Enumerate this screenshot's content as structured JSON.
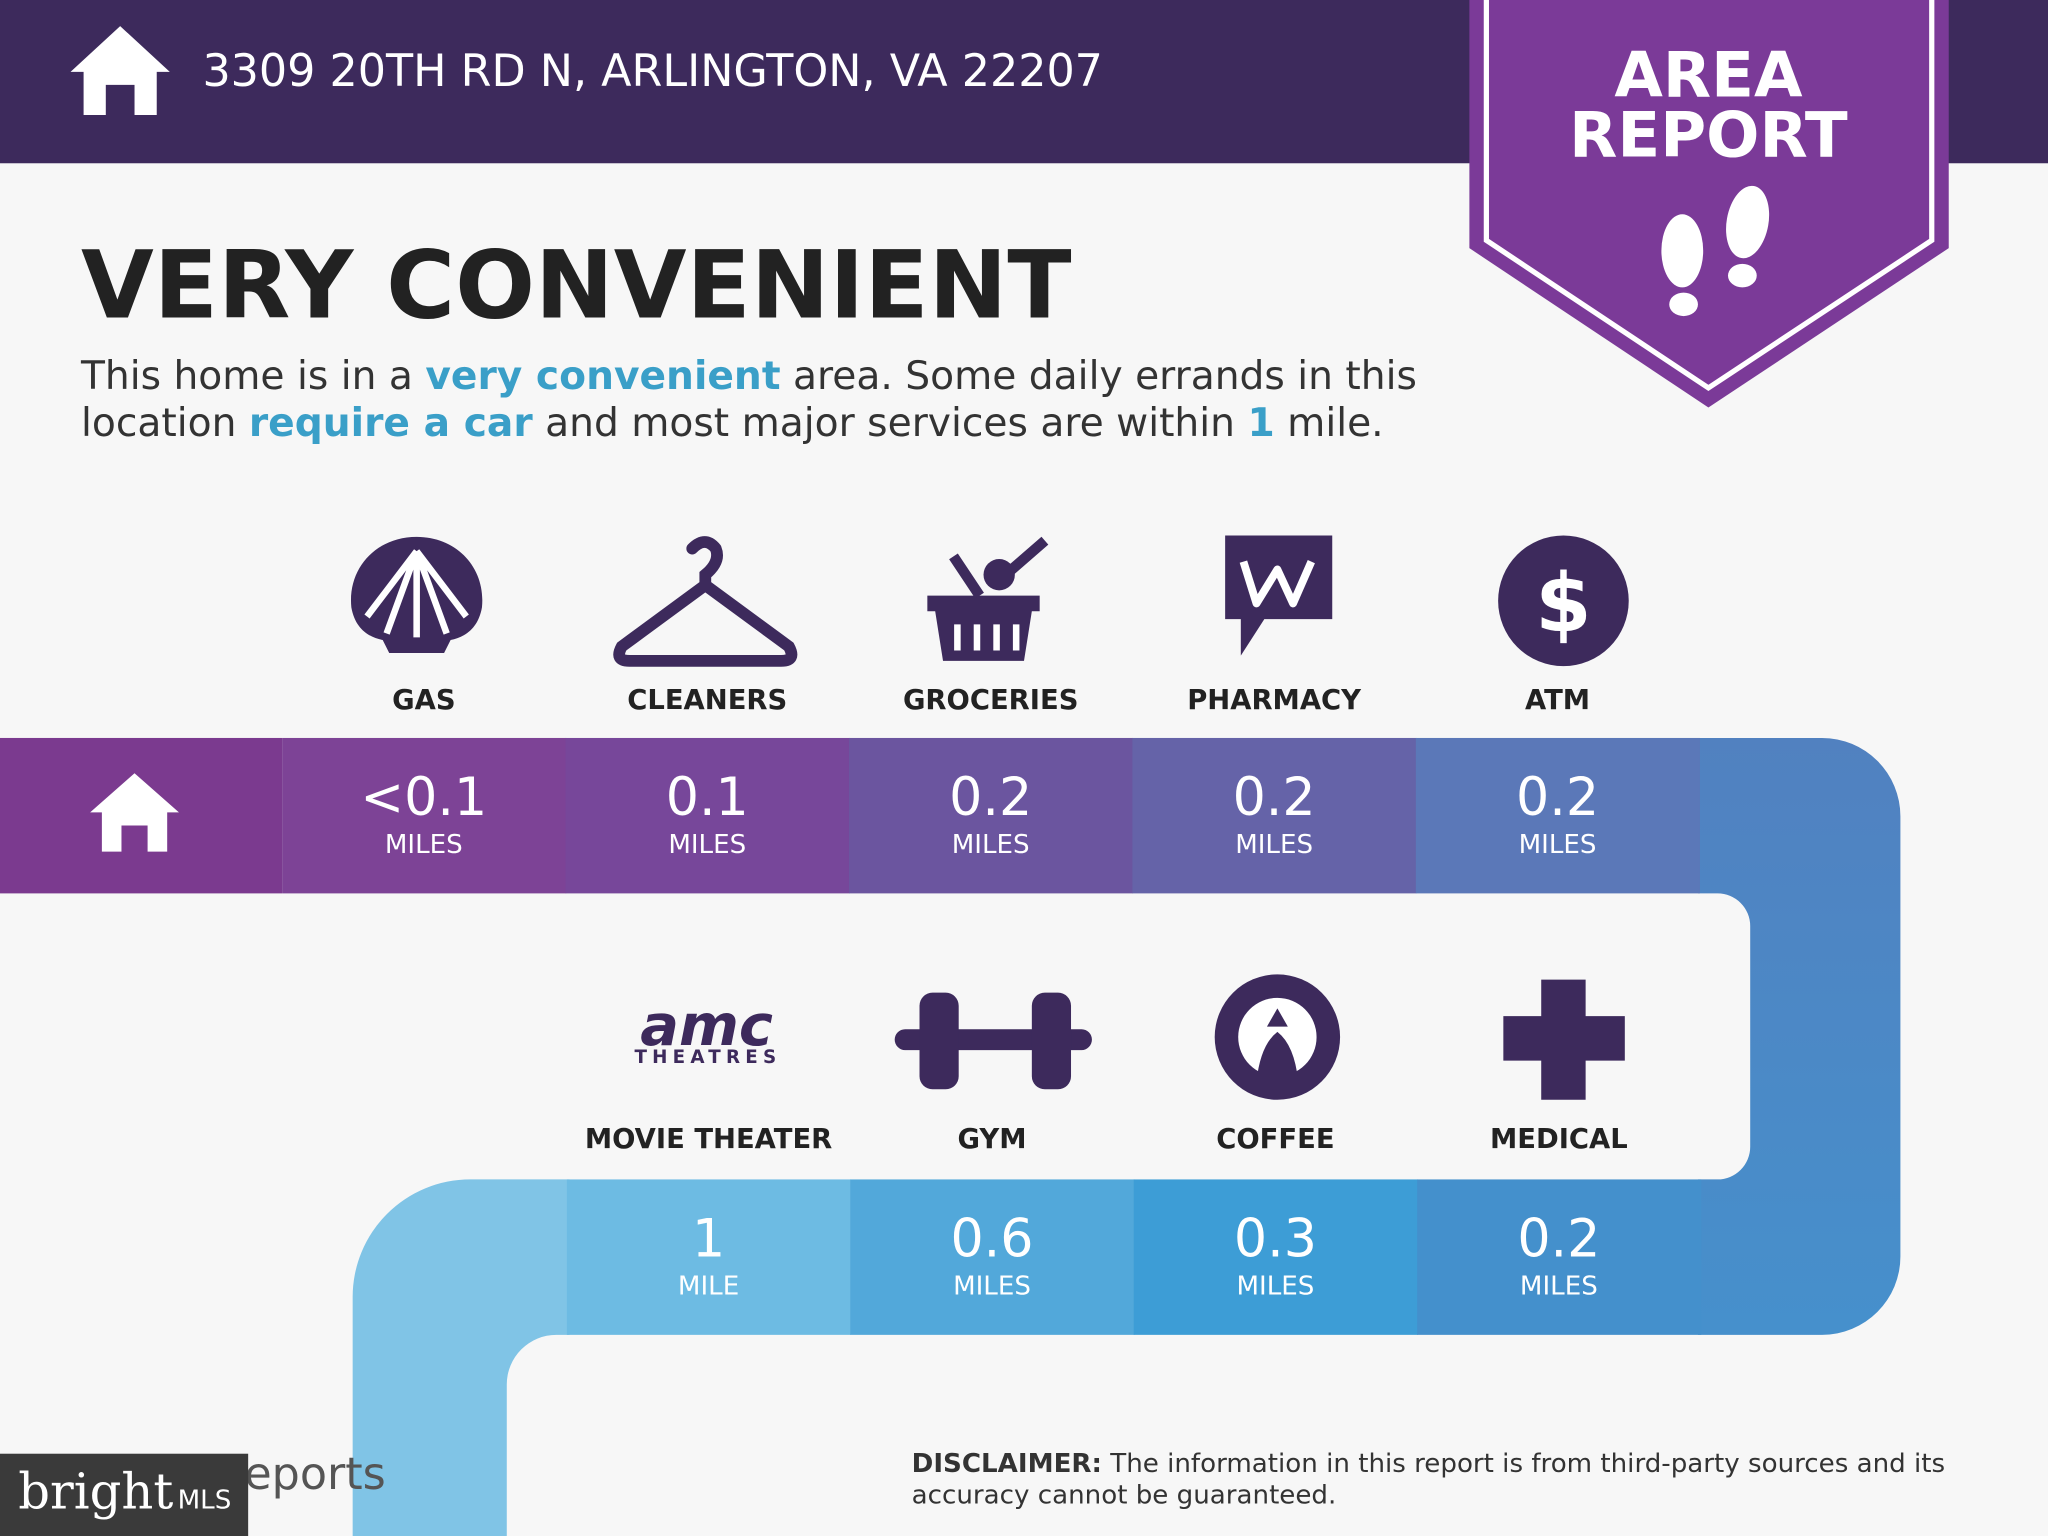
{
  "header": {
    "address": "3309 20TH RD N, ARLINGTON, VA 22207"
  },
  "badge": {
    "line1": "AREA",
    "line2": "REPORT"
  },
  "headline": "VERY CONVENIENT",
  "description": {
    "line1": [
      "This home is in a ",
      "very convenient",
      " area. Some daily errands in this"
    ],
    "line2": [
      "location ",
      "require a car",
      " and most major services are within ",
      "1",
      " mile."
    ]
  },
  "top_row": [
    {
      "label": "GAS",
      "distance": "<0.1",
      "unit": "MILES"
    },
    {
      "label": "CLEANERS",
      "distance": "0.1",
      "unit": "MILES"
    },
    {
      "label": "GROCERIES",
      "distance": "0.2",
      "unit": "MILES"
    },
    {
      "label": "PHARMACY",
      "distance": "0.2",
      "unit": "MILES"
    },
    {
      "label": "ATM",
      "distance": "0.2",
      "unit": "MILES",
      "icon_text": "$"
    }
  ],
  "bottom_row": [
    {
      "label": "MOVIE THEATER",
      "distance": "1",
      "unit": "MILE",
      "icon_text": "amc",
      "icon_subtext": "THEATRES"
    },
    {
      "label": "GYM",
      "distance": "0.6",
      "unit": "MILES"
    },
    {
      "label": "COFFEE",
      "distance": "0.3",
      "unit": "MILES"
    },
    {
      "label": "MEDICAL",
      "distance": "0.2",
      "unit": "MILES"
    }
  ],
  "footer": {
    "brand": "bright",
    "brand_sub": "MLS",
    "reports": "Reports",
    "disclaimer_label": "DISCLAIMER:",
    "disclaimer_line1": " The information in this report is from third-party sources and its",
    "disclaimer_line2": "accuracy cannot be guaranteed."
  }
}
